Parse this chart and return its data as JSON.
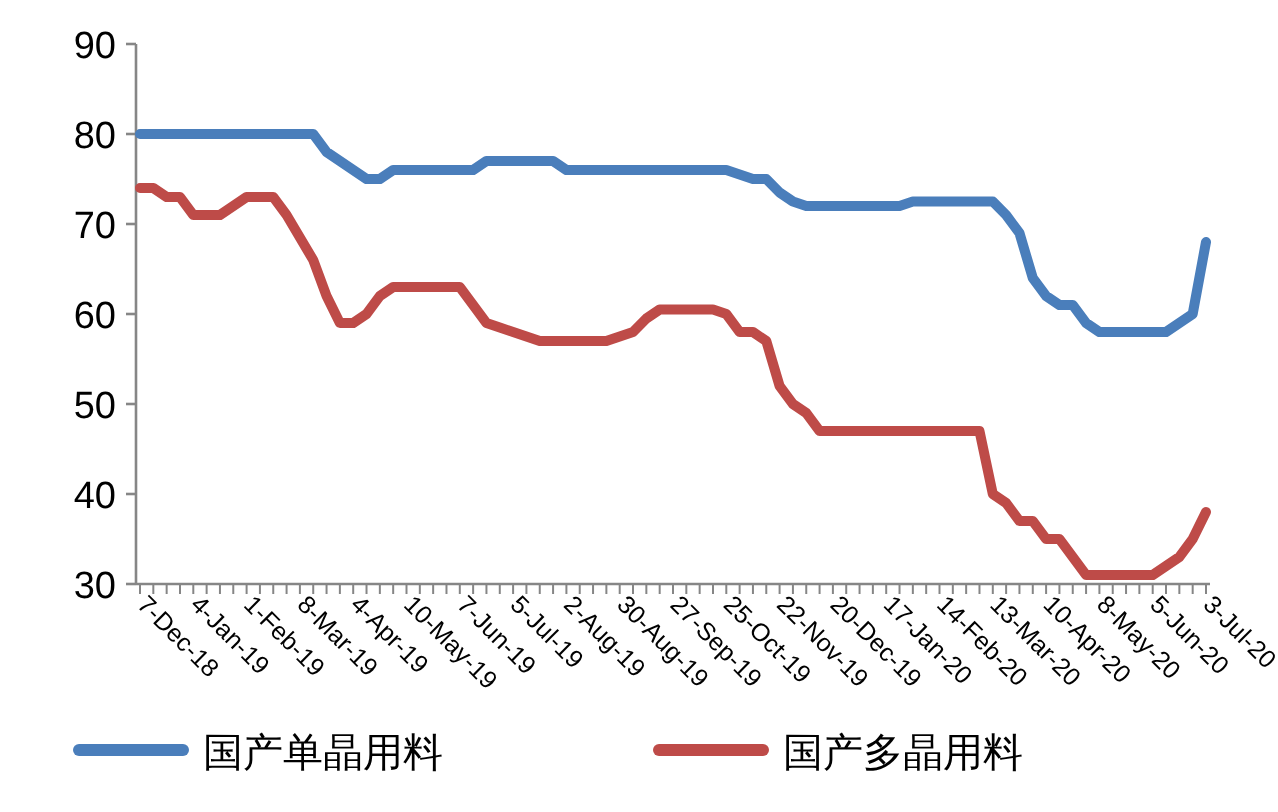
{
  "chart_data": {
    "type": "line",
    "categories": [
      "7-Dec-18",
      null,
      null,
      null,
      "4-Jan-19",
      null,
      null,
      null,
      "1-Feb-19",
      null,
      null,
      null,
      "8-Mar-19",
      null,
      null,
      null,
      "4-Apr-19",
      null,
      null,
      null,
      "10-May-19",
      null,
      null,
      null,
      "7-Jun-19",
      null,
      null,
      null,
      "5-Jul-19",
      null,
      null,
      null,
      "2-Aug-19",
      null,
      null,
      null,
      "30-Aug-19",
      null,
      null,
      null,
      "27-Sep-19",
      null,
      null,
      null,
      "25-Oct-19",
      null,
      null,
      null,
      "22-Nov-19",
      null,
      null,
      null,
      "20-Dec-19",
      null,
      null,
      null,
      "17-Jan-20",
      null,
      null,
      null,
      "14-Feb-20",
      null,
      null,
      null,
      "13-Mar-20",
      null,
      null,
      null,
      "10-Apr-20",
      null,
      null,
      null,
      "8-May-20",
      null,
      null,
      null,
      "5-Jun-20",
      null,
      null,
      null,
      "3-Jul-20"
    ],
    "series": [
      {
        "name": "国产单晶用料",
        "color": "#4a7ebb",
        "values": [
          80,
          80,
          80,
          80,
          80,
          80,
          80,
          80,
          80,
          80,
          80,
          80,
          80,
          80,
          78,
          77,
          76,
          75,
          75,
          76,
          76,
          76,
          76,
          76,
          76,
          76,
          77,
          77,
          77,
          77,
          77,
          77,
          76,
          76,
          76,
          76,
          76,
          76,
          76,
          76,
          76,
          76,
          76,
          76,
          76,
          75.5,
          75,
          75,
          73.5,
          72.5,
          72,
          72,
          72,
          72,
          72,
          72,
          72,
          72,
          72.5,
          72.5,
          72.5,
          72.5,
          72.5,
          72.5,
          72.5,
          71,
          69,
          64,
          62,
          61,
          61,
          59,
          58,
          58,
          58,
          58,
          58,
          58,
          59,
          60,
          68
        ]
      },
      {
        "name": "国产多晶用料",
        "color": "#be4b48",
        "values": [
          74,
          74,
          73,
          73,
          71,
          71,
          71,
          72,
          73,
          73,
          73,
          71,
          68.5,
          66,
          62,
          59,
          59,
          60,
          62,
          63,
          63,
          63,
          63,
          63,
          63,
          61,
          59,
          58.5,
          58,
          57.5,
          57,
          57,
          57,
          57,
          57,
          57,
          57.5,
          58,
          59.5,
          60.5,
          60.5,
          60.5,
          60.5,
          60.5,
          60,
          58,
          58,
          57,
          52,
          50,
          49,
          47,
          47,
          47,
          47,
          47,
          47,
          47,
          47,
          47,
          47,
          47,
          47,
          47,
          40,
          39,
          37,
          37,
          35,
          35,
          33,
          31,
          31,
          31,
          31,
          31,
          31,
          32,
          33,
          35,
          38
        ]
      }
    ],
    "ylim": [
      30,
      90
    ],
    "yticks": [
      30,
      40,
      50,
      60,
      70,
      80,
      90
    ],
    "legend": "bottom"
  }
}
